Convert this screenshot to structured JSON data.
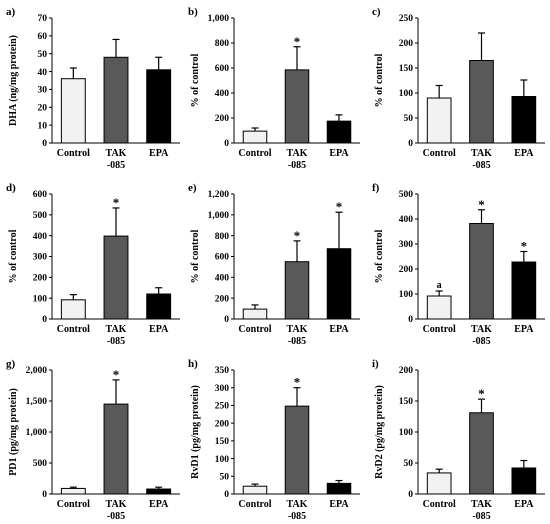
{
  "colors": {
    "control": "#f2f2f2",
    "tak085": "#595959",
    "epa": "#000000",
    "axis": "#000000"
  },
  "chart_data": [
    {
      "id": "a",
      "type": "bar",
      "panel_label": "a)",
      "ylabel": "DHA (ng/mg protein)",
      "categories": [
        "Control",
        "TAK",
        "EPA"
      ],
      "category_sublabels": [
        "",
        "-085",
        ""
      ],
      "values": [
        36,
        48,
        41
      ],
      "errors": [
        6,
        10,
        7
      ],
      "ylim": [
        0,
        70
      ],
      "ytick_values": [
        0,
        10,
        20,
        30,
        40,
        50,
        60,
        70
      ],
      "ytick_labels": [
        "0",
        "10",
        "20",
        "30",
        "40",
        "50",
        "60",
        "70"
      ],
      "annotations": [
        "",
        "",
        ""
      ]
    },
    {
      "id": "b",
      "type": "bar",
      "panel_label": "b)",
      "ylabel": "% of control",
      "categories": [
        "Control",
        "TAK",
        "EPA"
      ],
      "category_sublabels": [
        "",
        "-085",
        ""
      ],
      "values": [
        95,
        585,
        175
      ],
      "errors": [
        25,
        185,
        50
      ],
      "ylim": [
        0,
        1000
      ],
      "ytick_values": [
        0,
        200,
        400,
        600,
        800,
        1000
      ],
      "ytick_labels": [
        "0",
        "200",
        "400",
        "600",
        "800",
        "1,000"
      ],
      "annotations": [
        "",
        "*",
        ""
      ]
    },
    {
      "id": "c",
      "type": "bar",
      "panel_label": "c)",
      "ylabel": "% of control",
      "categories": [
        "Control",
        "TAK",
        "EPA"
      ],
      "category_sublabels": [
        "",
        "-085",
        ""
      ],
      "values": [
        90,
        165,
        93
      ],
      "errors": [
        25,
        55,
        33
      ],
      "ylim": [
        0,
        250
      ],
      "ytick_values": [
        0,
        50,
        100,
        150,
        200,
        250
      ],
      "ytick_labels": [
        "0",
        "50",
        "100",
        "150",
        "200",
        "250"
      ],
      "annotations": [
        "",
        "",
        ""
      ]
    },
    {
      "id": "d",
      "type": "bar",
      "panel_label": "d)",
      "ylabel": "% of control",
      "categories": [
        "Control",
        "TAK",
        "EPA"
      ],
      "category_sublabels": [
        "",
        "-085",
        ""
      ],
      "values": [
        92,
        398,
        120
      ],
      "errors": [
        25,
        135,
        30
      ],
      "ylim": [
        0,
        600
      ],
      "ytick_values": [
        0,
        100,
        200,
        300,
        400,
        500,
        600
      ],
      "ytick_labels": [
        "0",
        "100",
        "200",
        "300",
        "400",
        "500",
        "600"
      ],
      "annotations": [
        "",
        "*",
        ""
      ]
    },
    {
      "id": "e",
      "type": "bar",
      "panel_label": "e)",
      "ylabel": "% of control",
      "categories": [
        "Control",
        "TAK",
        "EPA"
      ],
      "category_sublabels": [
        "",
        "-085",
        ""
      ],
      "values": [
        95,
        550,
        675
      ],
      "errors": [
        40,
        200,
        350
      ],
      "ylim": [
        0,
        1200
      ],
      "ytick_values": [
        0,
        200,
        400,
        600,
        800,
        1000,
        1200
      ],
      "ytick_labels": [
        "0",
        "200",
        "400",
        "600",
        "800",
        "1,000",
        "1,200"
      ],
      "annotations": [
        "",
        "*",
        "*"
      ]
    },
    {
      "id": "f",
      "type": "bar",
      "panel_label": "f)",
      "ylabel": "% of control",
      "categories": [
        "Control",
        "TAK",
        "EPA"
      ],
      "category_sublabels": [
        "",
        "-085",
        ""
      ],
      "values": [
        92,
        382,
        228
      ],
      "errors": [
        20,
        55,
        42
      ],
      "ylim": [
        0,
        500
      ],
      "ytick_values": [
        0,
        100,
        200,
        300,
        400,
        500
      ],
      "ytick_labels": [
        "0",
        "100",
        "200",
        "300",
        "400",
        "500"
      ],
      "annotations": [
        "a",
        "*",
        "*"
      ]
    },
    {
      "id": "g",
      "type": "bar",
      "panel_label": "g)",
      "ylabel": "PD1 (pg/mg protein)",
      "categories": [
        "Control",
        "TAK",
        "EPA"
      ],
      "category_sublabels": [
        "",
        "-085",
        ""
      ],
      "values": [
        90,
        1450,
        80
      ],
      "errors": [
        20,
        390,
        30
      ],
      "ylim": [
        0,
        2000
      ],
      "ytick_values": [
        0,
        500,
        1000,
        1500,
        2000
      ],
      "ytick_labels": [
        "0",
        "500",
        "1,000",
        "1,500",
        "2,000"
      ],
      "annotations": [
        "",
        "*",
        ""
      ]
    },
    {
      "id": "h",
      "type": "bar",
      "panel_label": "h)",
      "ylabel": "RvD1 (pg/mg protein)",
      "categories": [
        "Control",
        "TAK",
        "EPA"
      ],
      "category_sublabels": [
        "",
        "-085",
        ""
      ],
      "values": [
        22,
        248,
        30
      ],
      "errors": [
        6,
        52,
        8
      ],
      "ylim": [
        0,
        350
      ],
      "ytick_values": [
        0,
        50,
        100,
        150,
        200,
        250,
        300,
        350
      ],
      "ytick_labels": [
        "0",
        "50",
        "100",
        "150",
        "200",
        "250",
        "300",
        "350"
      ],
      "annotations": [
        "",
        "*",
        ""
      ]
    },
    {
      "id": "i",
      "type": "bar",
      "panel_label": "i)",
      "ylabel": "RvD2 (pg/mg protein)",
      "categories": [
        "Control",
        "TAK",
        "EPA"
      ],
      "category_sublabels": [
        "",
        "-085",
        ""
      ],
      "values": [
        34,
        131,
        42
      ],
      "errors": [
        6,
        22,
        12
      ],
      "ylim": [
        0,
        200
      ],
      "ytick_values": [
        0,
        50,
        100,
        150,
        200
      ],
      "ytick_labels": [
        "0",
        "50",
        "100",
        "150",
        "200"
      ],
      "annotations": [
        "",
        "*",
        ""
      ]
    }
  ]
}
